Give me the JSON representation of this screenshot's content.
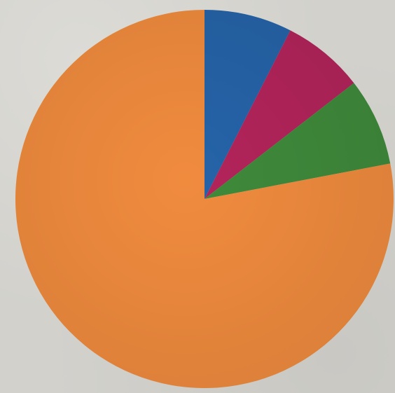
{
  "chart_data": {
    "type": "pie",
    "title": "",
    "start": "12 o'clock",
    "direction": "clockwise",
    "legend": "none",
    "slices": [
      {
        "value": 7.5,
        "color": "#2563a8"
      },
      {
        "value": 7.0,
        "color": "#b2245a"
      },
      {
        "value": 7.5,
        "color": "#3f8a3b"
      },
      {
        "value": 78.0,
        "color": "#f08b3e"
      }
    ]
  }
}
